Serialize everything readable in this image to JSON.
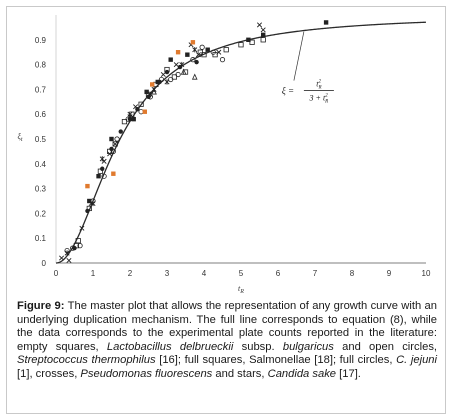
{
  "chart_data": {
    "type": "scatter",
    "xlabel": "t",
    "xlabel_sub": "R",
    "ylabel": "ξ",
    "ylabel_sub": "t",
    "xlim": [
      0,
      10
    ],
    "ylim": [
      0,
      1
    ],
    "x_ticks": [
      "0",
      "1",
      "2",
      "3",
      "4",
      "5",
      "6",
      "7",
      "8",
      "9",
      "10"
    ],
    "y_ticks": [
      "0",
      "0.1",
      "0.2",
      "0.3",
      "0.4",
      "0.5",
      "0.6",
      "0.7",
      "0.8",
      "0.9"
    ],
    "grid": false,
    "annotation": {
      "lhs": "ξ =",
      "num": "t",
      "num_sub": "R",
      "num_sup": "2",
      "den": "3 + t",
      "den_sub": "R",
      "den_sup": "2",
      "anchor": [
        6.7,
        0.9
      ]
    },
    "line": {
      "name": "equation (8)",
      "color": "#2b2b2b",
      "formula": "x^2/(3+x^2)"
    },
    "series": [
      {
        "marker": "square-open",
        "color": "#222222",
        "points": [
          [
            0.55,
            0.07
          ],
          [
            0.6,
            0.09
          ],
          [
            0.9,
            0.22
          ],
          [
            1.2,
            0.37
          ],
          [
            1.45,
            0.45
          ],
          [
            1.6,
            0.48
          ],
          [
            1.85,
            0.57
          ],
          [
            2.05,
            0.6
          ],
          [
            2.3,
            0.64
          ],
          [
            2.5,
            0.68
          ],
          [
            2.7,
            0.72
          ],
          [
            3.0,
            0.78
          ],
          [
            3.2,
            0.75
          ],
          [
            3.5,
            0.77
          ],
          [
            3.9,
            0.85
          ],
          [
            4.0,
            0.84
          ],
          [
            4.3,
            0.84
          ],
          [
            4.6,
            0.86
          ],
          [
            5.0,
            0.88
          ],
          [
            5.3,
            0.89
          ],
          [
            5.6,
            0.9
          ]
        ]
      },
      {
        "marker": "circle-open",
        "color": "#222222",
        "points": [
          [
            0.3,
            0.05
          ],
          [
            0.45,
            0.06
          ],
          [
            0.65,
            0.07
          ],
          [
            1.0,
            0.25
          ],
          [
            1.3,
            0.35
          ],
          [
            1.55,
            0.45
          ],
          [
            1.65,
            0.5
          ],
          [
            1.95,
            0.58
          ],
          [
            2.3,
            0.61
          ],
          [
            2.55,
            0.67
          ],
          [
            2.85,
            0.74
          ],
          [
            3.1,
            0.74
          ],
          [
            3.3,
            0.76
          ],
          [
            3.7,
            0.82
          ],
          [
            3.95,
            0.87
          ],
          [
            4.25,
            0.85
          ],
          [
            4.5,
            0.82
          ]
        ]
      },
      {
        "marker": "square-filled",
        "color": "#222222",
        "points": [
          [
            0.9,
            0.25
          ],
          [
            1.15,
            0.35
          ],
          [
            1.5,
            0.5
          ],
          [
            2.1,
            0.58
          ],
          [
            2.45,
            0.69
          ],
          [
            2.75,
            0.73
          ],
          [
            3.1,
            0.82
          ],
          [
            3.55,
            0.84
          ],
          [
            4.1,
            0.86
          ],
          [
            5.2,
            0.9
          ],
          [
            5.6,
            0.92
          ],
          [
            7.3,
            0.97
          ]
        ]
      },
      {
        "marker": "circle-filled",
        "color": "#222222",
        "points": [
          [
            0.5,
            0.06
          ],
          [
            0.85,
            0.21
          ],
          [
            1.25,
            0.38
          ],
          [
            1.5,
            0.46
          ],
          [
            1.75,
            0.53
          ],
          [
            2.0,
            0.58
          ],
          [
            2.2,
            0.62
          ],
          [
            2.5,
            0.67
          ],
          [
            2.8,
            0.73
          ],
          [
            3.0,
            0.77
          ],
          [
            3.35,
            0.79
          ],
          [
            3.8,
            0.81
          ]
        ]
      },
      {
        "marker": "cross",
        "color": "#222222",
        "points": [
          [
            0.15,
            0.02
          ],
          [
            0.35,
            0.01
          ],
          [
            0.7,
            0.14
          ],
          [
            0.95,
            0.24
          ],
          [
            1.3,
            0.41
          ],
          [
            1.45,
            0.44
          ],
          [
            1.6,
            0.48
          ],
          [
            2.0,
            0.6
          ],
          [
            2.15,
            0.63
          ],
          [
            2.55,
            0.68
          ],
          [
            2.9,
            0.76
          ],
          [
            3.25,
            0.8
          ],
          [
            3.65,
            0.88
          ],
          [
            3.85,
            0.84
          ],
          [
            4.4,
            0.85
          ],
          [
            5.6,
            0.94
          ],
          [
            5.5,
            0.96
          ]
        ]
      },
      {
        "marker": "star",
        "color": "#222222",
        "points": [
          [
            0.3,
            0.04
          ],
          [
            1.0,
            0.24
          ],
          [
            1.25,
            0.42
          ],
          [
            2.0,
            0.59
          ],
          [
            2.65,
            0.7
          ],
          [
            3.0,
            0.73
          ],
          [
            3.4,
            0.8
          ],
          [
            3.75,
            0.86
          ]
        ]
      },
      {
        "marker": "triangle-open",
        "color": "#222222",
        "points": [
          [
            2.65,
            0.69
          ],
          [
            3.45,
            0.77
          ],
          [
            3.75,
            0.75
          ]
        ]
      },
      {
        "marker": "square-filled",
        "color": "#e07a2e",
        "points": [
          [
            0.85,
            0.31
          ],
          [
            1.55,
            0.36
          ],
          [
            2.4,
            0.61
          ],
          [
            2.6,
            0.72
          ],
          [
            3.3,
            0.85
          ],
          [
            3.7,
            0.89
          ]
        ]
      }
    ]
  },
  "caption": {
    "figure_label": "Figure 9:",
    "segments": [
      {
        "text": " The master plot that allows the representation of any growth curve with an underlying duplication mechanism. The full line corresponds to equation (8), while the data corresponds to the experimental plate counts reported in the literature: empty squares, ",
        "italic": false
      },
      {
        "text": "Lactobacillus delbrueckii",
        "italic": true
      },
      {
        "text": " subsp. ",
        "italic": false
      },
      {
        "text": "bulgaricus",
        "italic": true
      },
      {
        "text": " and open circles, ",
        "italic": false
      },
      {
        "text": "Streptococcus thermophilus",
        "italic": true
      },
      {
        "text": " [16]; full squares, Salmonellae [18]; full circles, ",
        "italic": false
      },
      {
        "text": "C. jejuni",
        "italic": true
      },
      {
        "text": " [1], crosses, ",
        "italic": false
      },
      {
        "text": "Pseudomonas fluorescens",
        "italic": true
      },
      {
        "text": " and stars, ",
        "italic": false
      },
      {
        "text": "Candida sake",
        "italic": true
      },
      {
        "text": " [17].",
        "italic": false
      }
    ]
  }
}
